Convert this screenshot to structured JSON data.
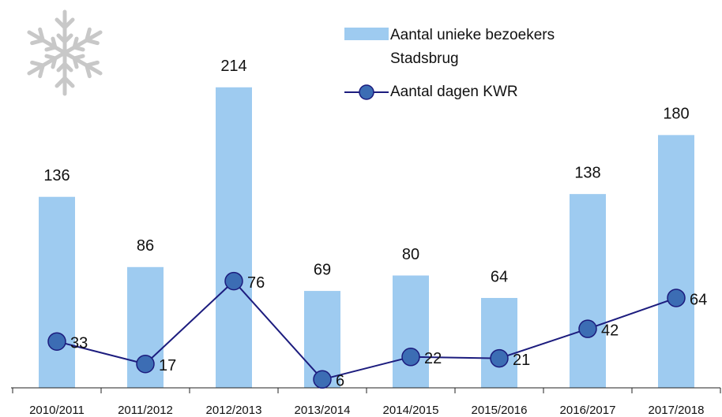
{
  "chart_data": {
    "type": "bar_line",
    "categories": [
      "2010/2011",
      "2011/2012",
      "2012/2013",
      "2013/2014",
      "2014/2015",
      "2015/2016",
      "2016/2017",
      "2017/2018"
    ],
    "series": [
      {
        "name": "Aantal unieke bezoekers Stadsbrug",
        "type": "bar",
        "color": "#9ecbf0",
        "values": [
          136,
          86,
          214,
          69,
          80,
          64,
          138,
          180
        ]
      },
      {
        "name": "Aantal dagen KWR",
        "type": "line",
        "color": "#1c1c7e",
        "marker_color": "#3c6db4",
        "values": [
          33,
          17,
          76,
          6,
          22,
          21,
          42,
          64
        ]
      }
    ],
    "ylim": [
      0,
      270
    ]
  }
}
